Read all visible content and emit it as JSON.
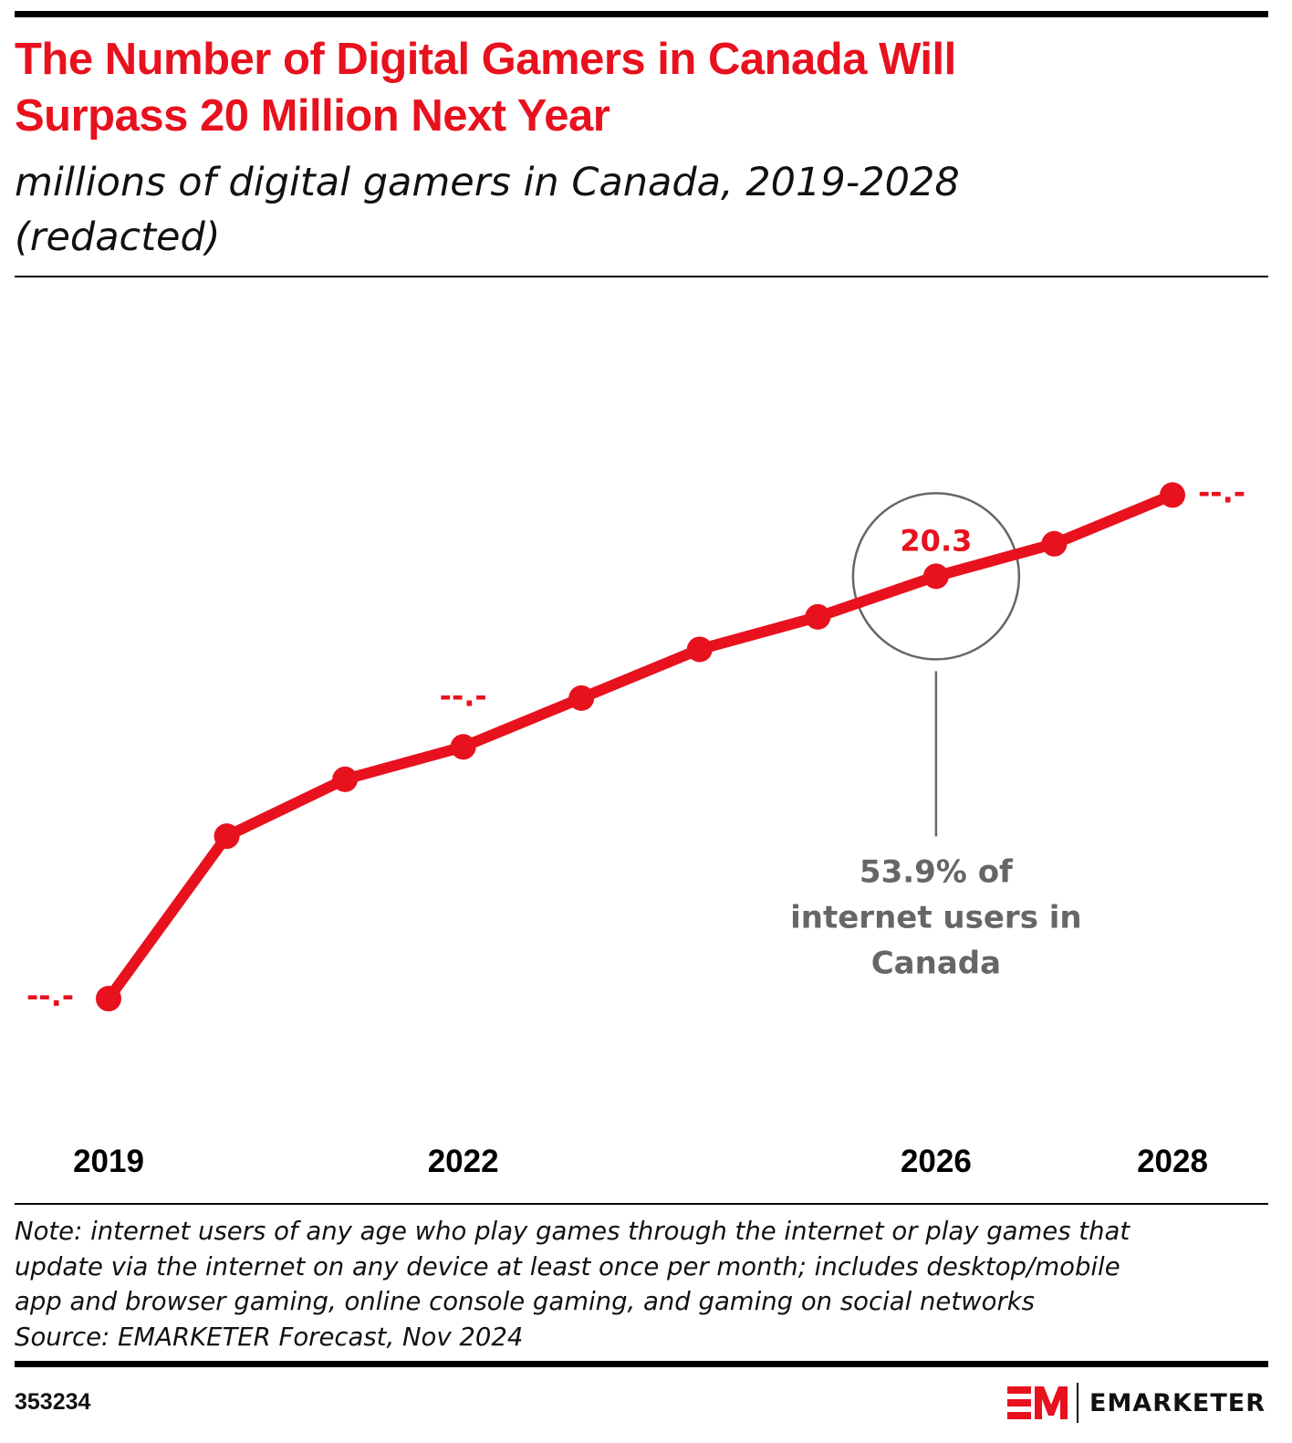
{
  "header": {
    "title_line1": "The Number of Digital Gamers in Canada Will",
    "title_line2": "Surpass 20 Million Next Year",
    "subtitle_line1": "millions of digital gamers in Canada, 2019-2028",
    "subtitle_line2": "(redacted)"
  },
  "chart_data": {
    "type": "line",
    "title": "The Number of Digital Gamers in Canada Will Surpass 20 Million Next Year",
    "subtitle": "millions of digital gamers in Canada, 2019-2028 (redacted)",
    "xlabel": "",
    "ylabel": "millions of digital gamers",
    "x": [
      2019,
      2020,
      2021,
      2022,
      2023,
      2024,
      2025,
      2026,
      2027,
      2028
    ],
    "tick_labels": [
      "2019",
      "2022",
      "2026",
      "2028"
    ],
    "tick_years": [
      2019,
      2022,
      2026,
      2028
    ],
    "series": [
      {
        "name": "Digital gamers in Canada (millions)",
        "color": "#e8111e",
        "values": [
          15.1,
          17.1,
          17.8,
          18.2,
          18.8,
          19.4,
          19.8,
          20.3,
          20.7,
          21.3
        ]
      }
    ],
    "ylim": [
      12.0,
      22.9
    ],
    "grid": false,
    "legend": "none",
    "data_labels": [
      {
        "year": 2019,
        "text": "--.-",
        "position": "left"
      },
      {
        "year": 2022,
        "text": "--.-",
        "position": "above"
      },
      {
        "year": 2026,
        "text": "20.3",
        "position": "above"
      },
      {
        "year": 2028,
        "text": "--.-",
        "position": "right"
      }
    ],
    "annotation": {
      "year": 2026,
      "lines": [
        "53.9% of",
        "internet users in",
        "Canada"
      ]
    }
  },
  "colors": {
    "accent": "#e8111e",
    "annotation": "#666666",
    "text": "#111111"
  },
  "footer": {
    "note_lines": [
      "Note: internet users of any age who play games through the internet or play games that",
      "update via the internet on any device at least once per month; includes desktop/mobile",
      "app and browser gaming, online console gaming, and gaming on social networks"
    ],
    "source": "Source: EMARKETER Forecast, Nov 2024",
    "chart_id": "353234",
    "brand": "EMARKETER",
    "brand_icon": "em-logo-icon"
  }
}
